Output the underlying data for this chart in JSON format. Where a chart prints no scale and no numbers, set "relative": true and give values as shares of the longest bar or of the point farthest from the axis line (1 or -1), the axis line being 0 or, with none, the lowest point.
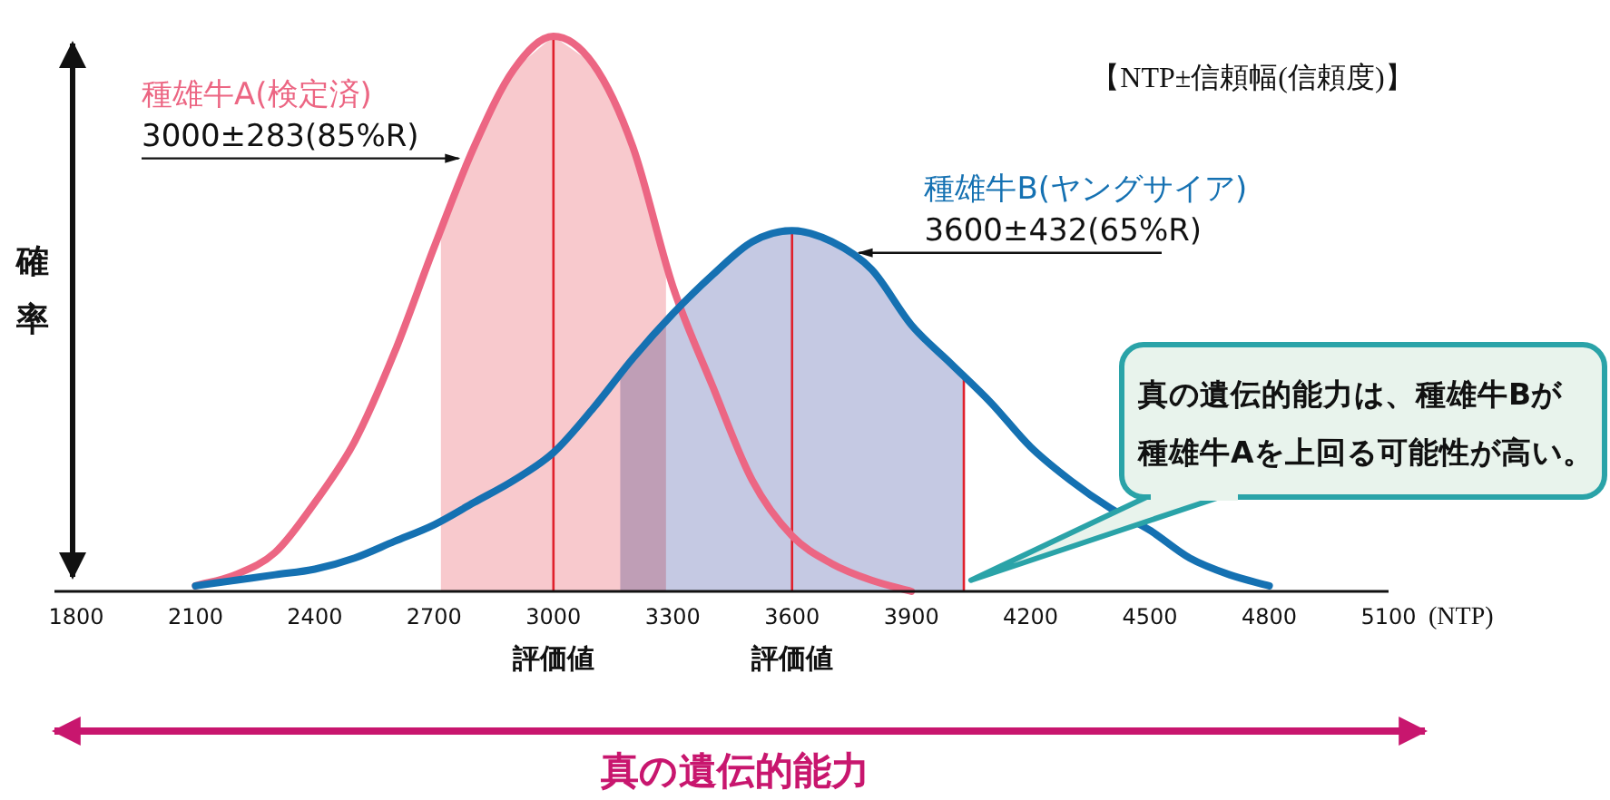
{
  "chart_data": {
    "type": "line",
    "relative": true,
    "subtitle": "【NTP±信頼幅(信頼度)】",
    "xlabel": "真の遺伝的能力",
    "ylabel": "確率",
    "xlim": [
      1800,
      5100
    ],
    "xticks": [
      1800,
      2100,
      2400,
      2700,
      3000,
      3300,
      3600,
      3900,
      4200,
      4500,
      4800,
      5100
    ],
    "series": [
      {
        "name": "種雄牛A(検定済)",
        "color": "#ec6683",
        "x": [
          2100,
          2200,
          2300,
          2400,
          2500,
          2600,
          2700,
          2800,
          2900,
          3000,
          3100,
          3200,
          3300,
          3400,
          3500,
          3600,
          3700,
          3800,
          3900
        ],
        "values": [
          0.01,
          0.03,
          0.07,
          0.16,
          0.27,
          0.43,
          0.62,
          0.8,
          0.94,
          1,
          0.95,
          0.8,
          0.55,
          0.37,
          0.2,
          0.1,
          0.05,
          0.02,
          0
        ]
      },
      {
        "name": "種雄牛B(ヤングサイア)",
        "color": "#1571b2",
        "x": [
          2100,
          2200,
          2300,
          2400,
          2500,
          2600,
          2700,
          2800,
          2900,
          3000,
          3100,
          3200,
          3300,
          3400,
          3500,
          3600,
          3700,
          3800,
          3900,
          4000,
          4100,
          4200,
          4300,
          4400,
          4500,
          4600,
          4700,
          4800
        ],
        "values": [
          0.01,
          0.02,
          0.03,
          0.04,
          0.06,
          0.09,
          0.12,
          0.16,
          0.2,
          0.25,
          0.33,
          0.42,
          0.5,
          0.57,
          0.63,
          0.65,
          0.63,
          0.58,
          0.48,
          0.41,
          0.34,
          0.26,
          0.2,
          0.15,
          0.11,
          0.06,
          0.03,
          0.01
        ]
      }
    ],
    "bands": [
      {
        "axis": "x",
        "from": 2717,
        "to": 3283,
        "color": "#f8c9cd"
      },
      {
        "axis": "x",
        "from": 3168,
        "to": 4032,
        "color": "#c5c9e3"
      }
    ],
    "ref_lines": [
      {
        "axis": "x",
        "value": 3000,
        "label": "評価値",
        "color": "#e0202c"
      },
      {
        "axis": "x",
        "value": 3600,
        "label": "評価値",
        "color": "#e0202c"
      },
      {
        "axis": "x",
        "value": 4032,
        "color": "#e0202c"
      }
    ],
    "annotations": [
      {
        "text": "3000±283(85%R)",
        "x": 2780,
        "y": 0.78
      },
      {
        "text": "3600±432(65%R)",
        "x": 3750,
        "y": 0.61
      },
      {
        "text": "真の遺伝的能力は、種雄牛Bが種雄牛Aを上回る可能性が高い。",
        "x": 4050,
        "y": 0.02
      },
      "(NTP)"
    ]
  }
}
